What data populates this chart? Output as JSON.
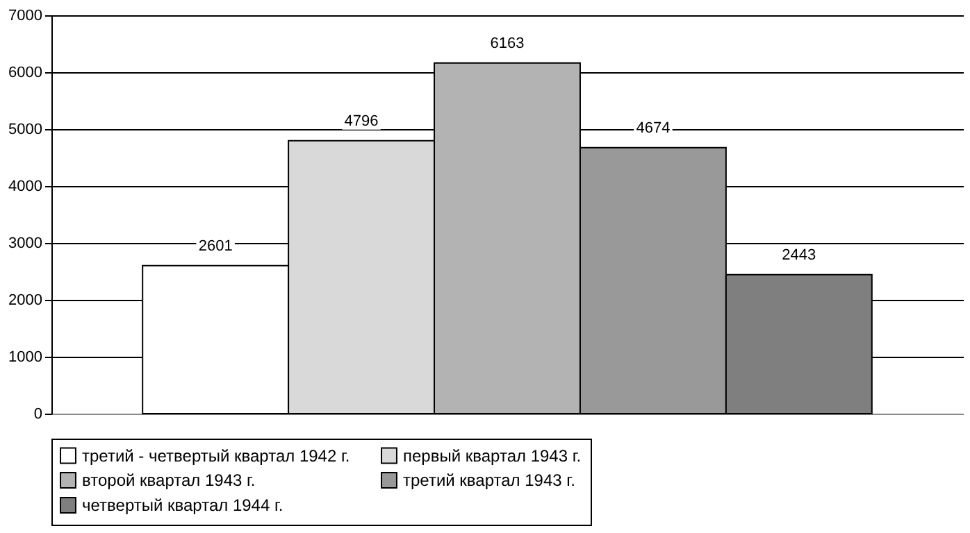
{
  "chart_data": {
    "type": "bar",
    "categories": [
      null
    ],
    "series": [
      {
        "name": "третий - четвертый квартал 1942 г.",
        "color": "#ffffff",
        "values": [
          2601
        ]
      },
      {
        "name": "первый квартал 1943 г.",
        "color": "#d9d9d9",
        "values": [
          4796
        ]
      },
      {
        "name": "второй квартал 1943 г.",
        "color": "#b3b3b3",
        "values": [
          6163
        ]
      },
      {
        "name": "третий квартал 1943 г.",
        "color": "#999999",
        "values": [
          4674
        ]
      },
      {
        "name": "четвертый квартал 1944 г.",
        "color": "#7f7f7f",
        "values": [
          2443
        ]
      }
    ],
    "ylim": [
      0,
      7000
    ],
    "yticks": [
      0,
      1000,
      2000,
      3000,
      4000,
      5000,
      6000,
      7000
    ],
    "grid": "y",
    "legend": "bottom",
    "data_labels": true
  }
}
